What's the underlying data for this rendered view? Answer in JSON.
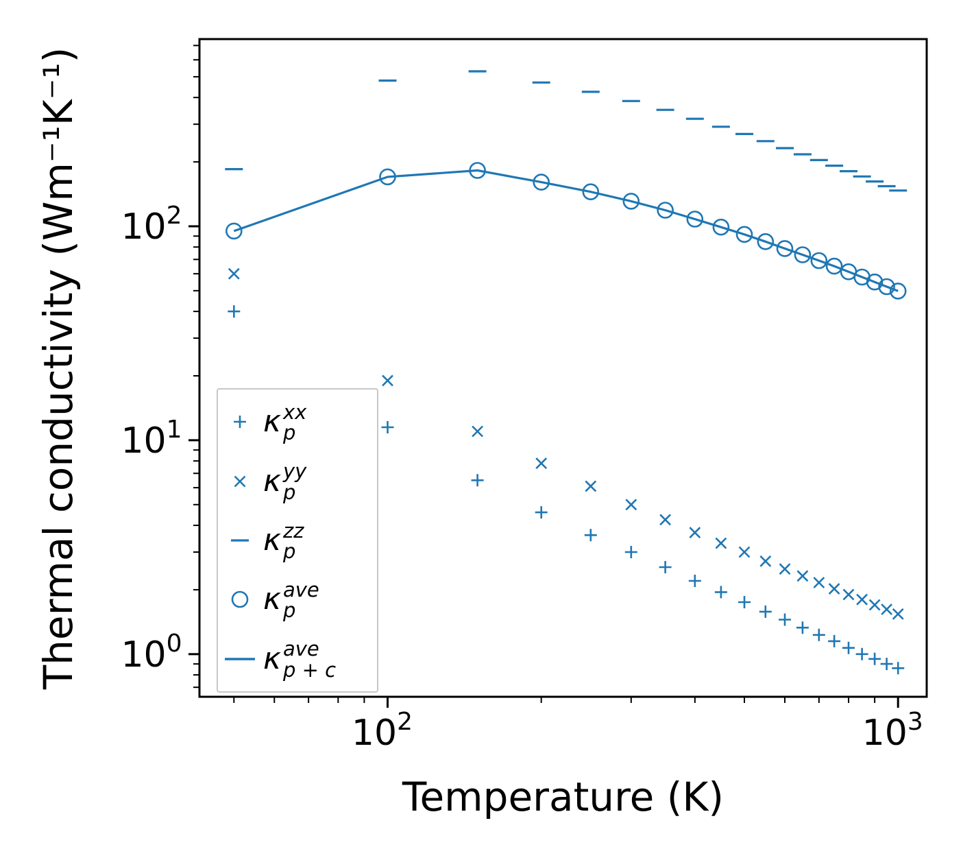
{
  "figure": {
    "background": "#ffffff",
    "accent": "#1f77b4",
    "axis_color": "#000000"
  },
  "chart_data": {
    "type": "line+scatter",
    "title": "",
    "xlabel": "Temperature (K)",
    "ylabel": "Thermal conductivity (Wm⁻¹K⁻¹)",
    "x_scale": "log",
    "y_scale": "log",
    "xlim": [
      42.8,
      1138
    ],
    "ylim": [
      0.632,
      750
    ],
    "x_major_ticks": [
      100,
      1000
    ],
    "x_minor_ticks": [
      50,
      60,
      70,
      80,
      90,
      200,
      300,
      400,
      500,
      600,
      700,
      800,
      900
    ],
    "y_major_ticks": [
      1,
      10,
      100
    ],
    "y_minor_ticks": [
      0.7,
      0.8,
      0.9,
      2,
      3,
      4,
      5,
      6,
      7,
      8,
      9,
      20,
      30,
      40,
      50,
      60,
      70,
      80,
      90,
      200,
      300,
      400,
      500,
      600,
      700
    ],
    "grid": false,
    "legend_position": "lower left",
    "temperatures": [
      50,
      100,
      150,
      200,
      250,
      300,
      350,
      400,
      450,
      500,
      550,
      600,
      650,
      700,
      750,
      800,
      850,
      900,
      950,
      1000
    ],
    "series": [
      {
        "key": "kappa-p-xx",
        "marker": "plus",
        "label": {
          "base": "κ",
          "sub": "p",
          "sup": "xx"
        },
        "values": [
          40,
          11.5,
          6.5,
          4.6,
          3.6,
          3.0,
          2.55,
          2.2,
          1.95,
          1.75,
          1.58,
          1.45,
          1.33,
          1.23,
          1.15,
          1.07,
          1.0,
          0.95,
          0.9,
          0.86
        ]
      },
      {
        "key": "kappa-p-yy",
        "marker": "x",
        "label": {
          "base": "κ",
          "sub": "p",
          "sup": "yy"
        },
        "values": [
          60,
          19,
          11,
          7.8,
          6.1,
          5.0,
          4.25,
          3.7,
          3.3,
          3.0,
          2.72,
          2.5,
          2.32,
          2.16,
          2.02,
          1.9,
          1.8,
          1.7,
          1.62,
          1.54
        ]
      },
      {
        "key": "kappa-p-zz",
        "marker": "dash",
        "label": {
          "base": "κ",
          "sub": "p",
          "sup": "zz"
        },
        "values": [
          185,
          480,
          530,
          470,
          425,
          385,
          350,
          318,
          292,
          270,
          250,
          232,
          217,
          204,
          192,
          181,
          171,
          162,
          154,
          147
        ]
      },
      {
        "key": "kappa-p-ave",
        "marker": "circle",
        "label": {
          "base": "κ",
          "sub": "p",
          "sup": "ave"
        },
        "values": [
          95.0,
          170.2,
          182.5,
          160.8,
          144.9,
          131.0,
          118.9,
          108.0,
          99.1,
          91.6,
          84.8,
          78.7,
          73.6,
          69.1,
          65.1,
          61.3,
          57.9,
          54.9,
          52.2,
          49.8
        ]
      },
      {
        "key": "kappa-p-plus-c-ave",
        "marker": "line",
        "label": {
          "base": "κ",
          "sub": "p + c",
          "sup": "ave"
        },
        "values": [
          95.0,
          170.2,
          182.5,
          160.8,
          144.9,
          131.0,
          118.9,
          108.0,
          99.1,
          91.6,
          84.8,
          78.7,
          73.6,
          69.1,
          65.1,
          61.3,
          57.9,
          54.9,
          52.2,
          49.8
        ]
      }
    ]
  }
}
